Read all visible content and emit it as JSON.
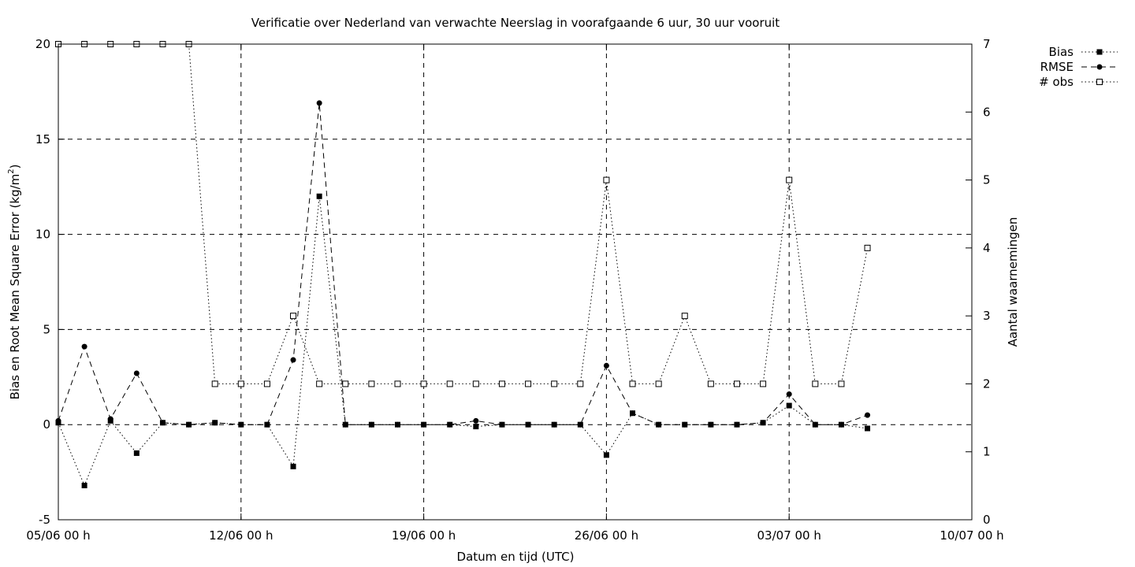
{
  "chart_data": {
    "type": "line",
    "title": "Verificatie over Nederland van verwachte Neerslag in voorafgaande 6 uur, 30 uur vooruit",
    "xlabel": "Datum en tijd (UTC)",
    "ylabel": "Bias en Root Mean Square Error (kg/m",
    "ylabel_sup": "2",
    "ylabel_end": ")",
    "y2label": "Aantal waarnemingen",
    "x_ticks": [
      "05/06 00 h",
      "12/06 00 h",
      "19/06 00 h",
      "26/06 00 h",
      "03/07 00 h",
      "10/07 00 h"
    ],
    "y_ticks": [
      "-5",
      "0",
      "5",
      "10",
      "15",
      "20"
    ],
    "y2_ticks": [
      "0",
      "1",
      "2",
      "3",
      "4",
      "5",
      "6",
      "7"
    ],
    "xlim": [
      0,
      35
    ],
    "ylim": [
      -5,
      20
    ],
    "y2lim": [
      0,
      7
    ],
    "grid": true,
    "legend_position": "top-right outside",
    "x_unit": "days since 05/06 00 h",
    "x": [
      0,
      1,
      2,
      3,
      4,
      5,
      6,
      7,
      8,
      9,
      10,
      11,
      12,
      13,
      14,
      15,
      16,
      17,
      18,
      19,
      20,
      21,
      22,
      23,
      24,
      25,
      26,
      27,
      28,
      29,
      30,
      31
    ],
    "series": [
      {
        "name": "Bias",
        "axis": "y1",
        "line": "dotted",
        "marker": "filled-square",
        "values": [
          0.1,
          -3.2,
          0.2,
          -1.5,
          0.1,
          0.0,
          0.1,
          0.0,
          0.0,
          -2.2,
          12.0,
          0.0,
          0.0,
          0.0,
          0.0,
          0.0,
          -0.1,
          0.0,
          0.0,
          0.0,
          0.0,
          -1.6,
          0.6,
          0.0,
          0.0,
          0.0,
          0.0,
          0.1,
          1.0,
          0.0,
          0.0,
          -0.2
        ]
      },
      {
        "name": "RMSE",
        "axis": "y1",
        "line": "dashed",
        "marker": "filled-circle",
        "values": [
          0.2,
          4.1,
          0.3,
          2.7,
          0.1,
          0.0,
          0.1,
          0.0,
          0.0,
          3.4,
          16.9,
          0.0,
          0.0,
          0.0,
          0.0,
          0.0,
          0.2,
          0.0,
          0.0,
          0.0,
          0.0,
          3.1,
          0.6,
          0.0,
          0.0,
          0.0,
          0.0,
          0.1,
          1.6,
          0.0,
          0.0,
          0.5
        ]
      },
      {
        "name": "# obs",
        "axis": "y2",
        "line": "dotted",
        "marker": "open-square",
        "values": [
          7,
          7,
          7,
          7,
          7,
          7,
          2,
          2,
          2,
          3,
          2,
          2,
          2,
          2,
          2,
          2,
          2,
          2,
          2,
          2,
          2,
          5,
          2,
          2,
          3,
          2,
          2,
          2,
          5,
          2,
          2,
          4
        ]
      }
    ]
  }
}
